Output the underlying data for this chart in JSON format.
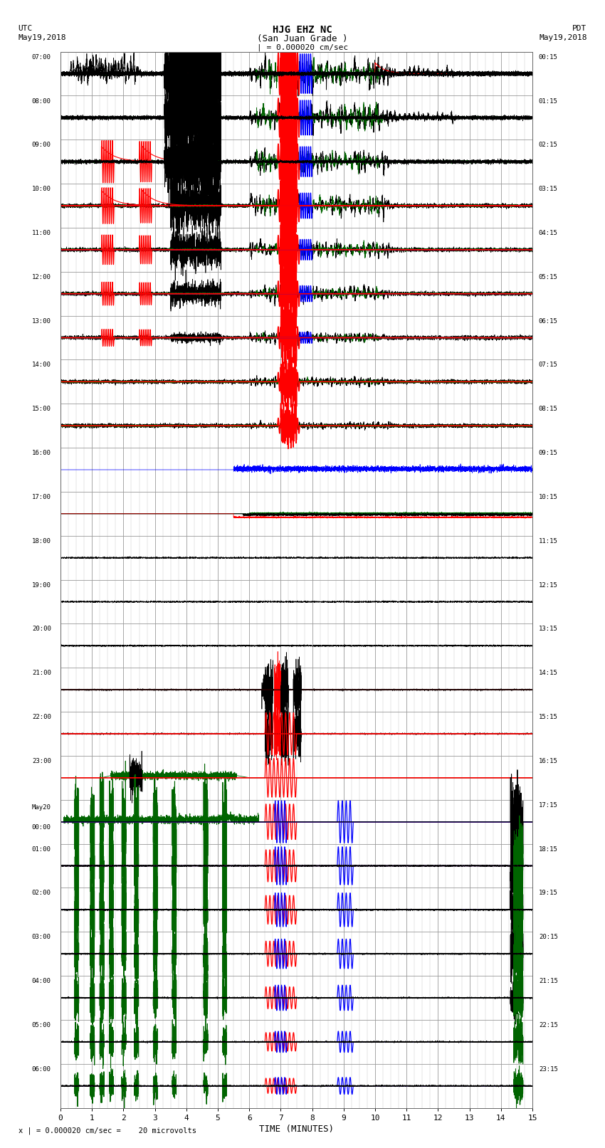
{
  "title_line1": "HJG EHZ NC",
  "title_line2": "(San Juan Grade )",
  "scale_label": "| = 0.000020 cm/sec",
  "utc_label": "UTC\nMay19,2018",
  "pdt_label": "PDT\nMay19,2018",
  "footer_label": "x | = 0.000020 cm/sec =    20 microvolts",
  "xlabel": "TIME (MINUTES)",
  "xlim": [
    0,
    15
  ],
  "xticks": [
    0,
    1,
    2,
    3,
    4,
    5,
    6,
    7,
    8,
    9,
    10,
    11,
    12,
    13,
    14,
    15
  ],
  "num_rows": 24,
  "background_color": "#ffffff",
  "grid_color": "#999999",
  "left_times": [
    "07:00",
    "08:00",
    "09:00",
    "10:00",
    "11:00",
    "12:00",
    "13:00",
    "14:00",
    "15:00",
    "16:00",
    "17:00",
    "18:00",
    "19:00",
    "20:00",
    "21:00",
    "22:00",
    "23:00",
    "May20\n00:00",
    "01:00",
    "02:00",
    "03:00",
    "04:00",
    "05:00",
    "06:00"
  ],
  "right_times": [
    "00:15",
    "01:15",
    "02:15",
    "03:15",
    "04:15",
    "05:15",
    "06:15",
    "07:15",
    "08:15",
    "09:15",
    "10:15",
    "11:15",
    "12:15",
    "13:15",
    "14:15",
    "15:15",
    "16:15",
    "17:15",
    "18:15",
    "19:15",
    "20:15",
    "21:15",
    "22:15",
    "23:15"
  ]
}
